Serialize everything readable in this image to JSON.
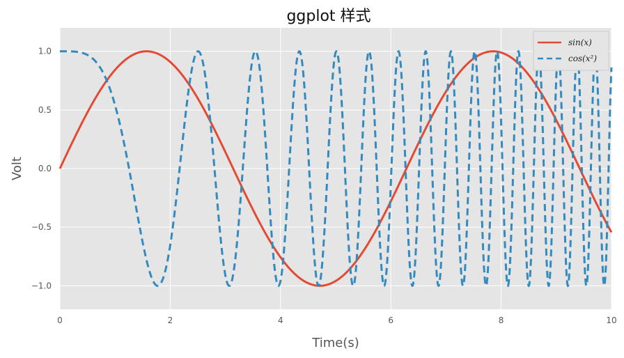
{
  "chart_data": {
    "type": "line",
    "title": "ggplot 样式",
    "xlabel": "Time(s)",
    "ylabel": "Volt",
    "xlim": [
      0,
      10
    ],
    "ylim": [
      -1.2,
      1.2
    ],
    "xticks": [
      0,
      2,
      4,
      6,
      8,
      10
    ],
    "yticks": [
      -1.0,
      -0.5,
      0.0,
      0.5,
      1.0
    ],
    "xtick_labels": [
      "0",
      "2",
      "4",
      "6",
      "8",
      "10"
    ],
    "ytick_labels": [
      "−1.0",
      "−0.5",
      "0.0",
      "0.5",
      "1.0"
    ],
    "grid": true,
    "legend_position": "top-right",
    "series": [
      {
        "name": "sin(x)",
        "function": "sin(x)",
        "color": "#E24A33",
        "linestyle": "solid"
      },
      {
        "name": "cos(x²)",
        "function": "cos(x^2)",
        "color": "#348ABD",
        "linestyle": "dashed"
      }
    ],
    "background_color": "#E5E5E5",
    "grid_color": "#FFFFFF"
  }
}
